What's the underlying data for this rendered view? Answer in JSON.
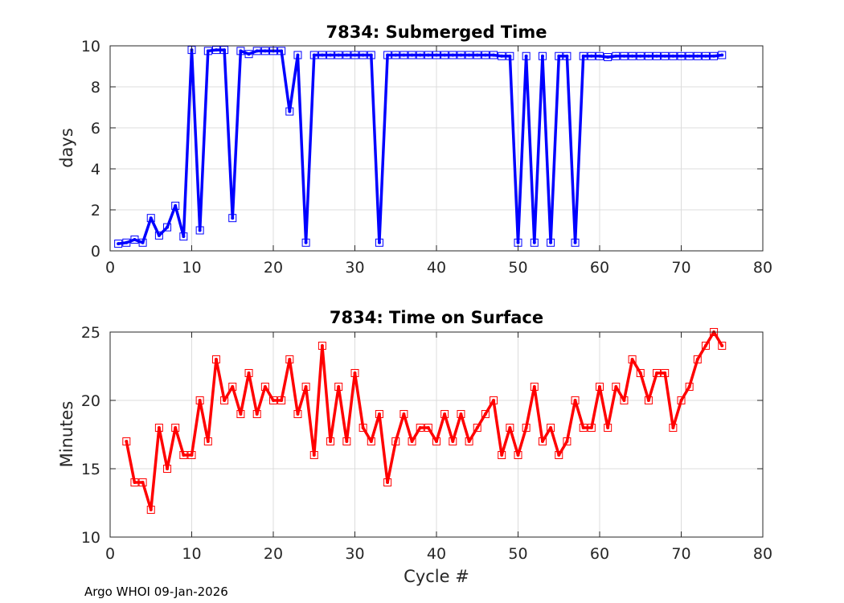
{
  "footer": "Argo WHOI 09-Jan-2026",
  "chart_data": [
    {
      "type": "line",
      "title": "7834: Submerged Time",
      "xlabel": "",
      "ylabel": "days",
      "xlim": [
        0,
        80
      ],
      "ylim": [
        0,
        10
      ],
      "xticks": [
        0,
        10,
        20,
        30,
        40,
        50,
        60,
        70,
        80
      ],
      "yticks": [
        0,
        2,
        4,
        6,
        8,
        10
      ],
      "grid": true,
      "color": "#0000ff",
      "series": [
        {
          "name": "Submerged Time",
          "x": [
            1,
            2,
            3,
            4,
            5,
            6,
            7,
            8,
            9,
            10,
            11,
            12,
            13,
            14,
            15,
            16,
            17,
            18,
            19,
            20,
            21,
            22,
            23,
            24,
            25,
            26,
            27,
            28,
            29,
            30,
            31,
            32,
            33,
            34,
            35,
            36,
            37,
            38,
            39,
            40,
            41,
            42,
            43,
            44,
            45,
            46,
            47,
            48,
            49,
            50,
            51,
            52,
            53,
            54,
            55,
            56,
            57,
            58,
            59,
            60,
            61,
            62,
            63,
            64,
            65,
            66,
            67,
            68,
            69,
            70,
            71,
            72,
            73,
            74,
            75
          ],
          "y": [
            0.35,
            0.4,
            0.55,
            0.4,
            1.6,
            0.75,
            1.15,
            2.2,
            0.7,
            9.8,
            1.0,
            9.75,
            9.8,
            9.8,
            1.6,
            9.75,
            9.6,
            9.75,
            9.75,
            9.75,
            9.75,
            6.8,
            9.55,
            0.4,
            9.55,
            9.55,
            9.55,
            9.55,
            9.55,
            9.55,
            9.55,
            9.55,
            0.4,
            9.55,
            9.55,
            9.55,
            9.55,
            9.55,
            9.55,
            9.55,
            9.55,
            9.55,
            9.55,
            9.55,
            9.55,
            9.55,
            9.55,
            9.5,
            9.5,
            0.4,
            9.5,
            0.4,
            9.5,
            0.4,
            9.5,
            9.5,
            0.4,
            9.5,
            9.5,
            9.5,
            9.45,
            9.5,
            9.5,
            9.5,
            9.5,
            9.5,
            9.5,
            9.5,
            9.5,
            9.5,
            9.5,
            9.5,
            9.5,
            9.5,
            9.55
          ]
        }
      ]
    },
    {
      "type": "line",
      "title": "7834: Time on Surface",
      "xlabel": "Cycle #",
      "ylabel": "Minutes",
      "xlim": [
        0,
        80
      ],
      "ylim": [
        10,
        25
      ],
      "xticks": [
        0,
        10,
        20,
        30,
        40,
        50,
        60,
        70,
        80
      ],
      "yticks": [
        10,
        15,
        20,
        25
      ],
      "grid": true,
      "color": "#ff0000",
      "series": [
        {
          "name": "Time on Surface",
          "x": [
            2,
            3,
            4,
            5,
            6,
            7,
            8,
            9,
            10,
            11,
            12,
            13,
            14,
            15,
            16,
            17,
            18,
            19,
            20,
            21,
            22,
            23,
            24,
            25,
            26,
            27,
            28,
            29,
            30,
            31,
            32,
            33,
            34,
            35,
            36,
            37,
            38,
            39,
            40,
            41,
            42,
            43,
            44,
            45,
            46,
            47,
            48,
            49,
            50,
            51,
            52,
            53,
            54,
            55,
            56,
            57,
            58,
            59,
            60,
            61,
            62,
            63,
            64,
            65,
            66,
            67,
            68,
            69,
            70,
            71,
            72,
            73,
            74,
            75
          ],
          "y": [
            17,
            14,
            14,
            12,
            18,
            15,
            18,
            16,
            16,
            20,
            17,
            23,
            20,
            21,
            19,
            22,
            19,
            21,
            20,
            20,
            23,
            19,
            21,
            16,
            24,
            17,
            21,
            17,
            22,
            18,
            17,
            19,
            14,
            17,
            19,
            17,
            18,
            18,
            17,
            19,
            17,
            19,
            17,
            18,
            19,
            20,
            16,
            18,
            16,
            18,
            21,
            17,
            18,
            16,
            17,
            20,
            18,
            18,
            21,
            18,
            21,
            20,
            23,
            22,
            20,
            22,
            22,
            18,
            20,
            21,
            23,
            24,
            25,
            24
          ]
        }
      ]
    }
  ]
}
